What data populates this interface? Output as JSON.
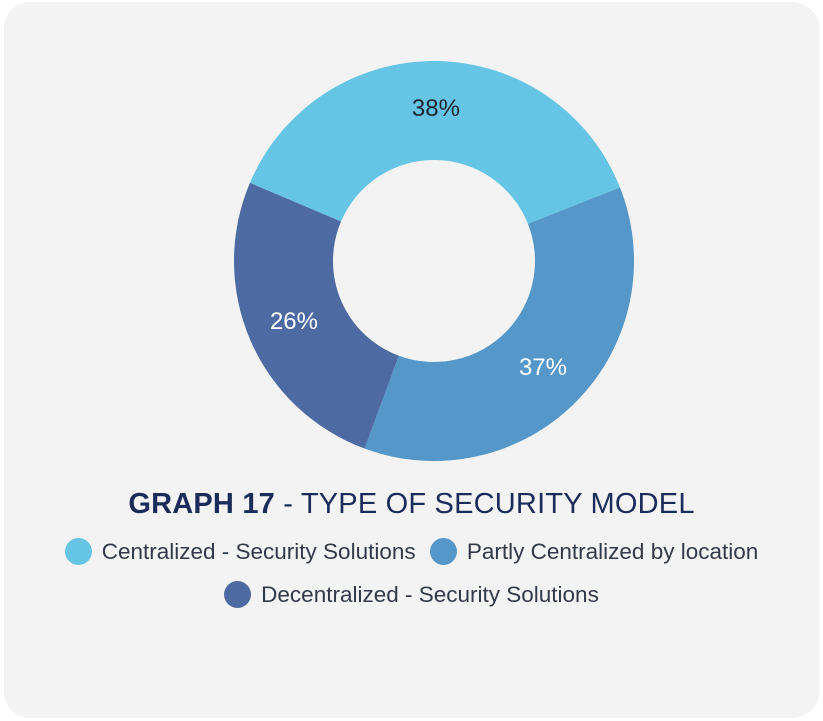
{
  "chart_data": {
    "type": "pie",
    "donut": true,
    "title_bold": "GRAPH 17",
    "title_rest": " - TYPE OF SECURITY MODEL",
    "slices": [
      {
        "label": "Centralized - Security Solutions",
        "value": 38,
        "display": "38%",
        "color": "#66c4e4",
        "label_color": "#1f2430"
      },
      {
        "label": "Partly Centralized by location",
        "value": 37,
        "display": "37%",
        "color": "#5497c8",
        "label_color": "#ffffff"
      },
      {
        "label": "Decentralized - Security Solutions",
        "value": 26,
        "display": "26%",
        "color": "#4d6aa2",
        "label_color": "#ffffff"
      }
    ],
    "legend_placement": "bottom"
  }
}
